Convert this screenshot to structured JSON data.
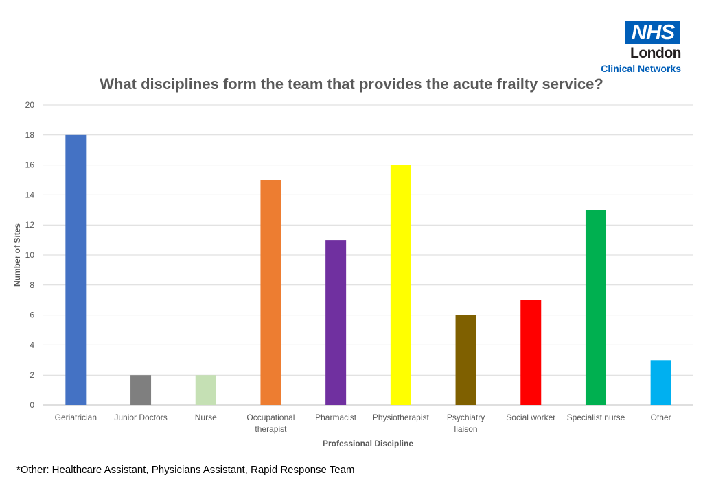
{
  "logo": {
    "brand": "NHS",
    "region": "London",
    "network": "Clinical Networks"
  },
  "colors": {
    "nhs_blue": "#005eb8",
    "title": "#595959",
    "gridline": "#d9d9d9",
    "axis_text": "#595959"
  },
  "chart_data": {
    "type": "bar",
    "title": "What disciplines form the team that provides the acute frailty service?",
    "xlabel": "Professional Discipline",
    "ylabel": "Number of Sites",
    "ylim": [
      0,
      20
    ],
    "yticks": [
      0,
      2,
      4,
      6,
      8,
      10,
      12,
      14,
      16,
      18,
      20
    ],
    "grid": true,
    "categories": [
      [
        "Geriatrician"
      ],
      [
        "Junior Doctors"
      ],
      [
        "Nurse"
      ],
      [
        "Occupational",
        "therapist"
      ],
      [
        "Pharmacist"
      ],
      [
        "Physiotherapist"
      ],
      [
        "Psychiatry",
        "liaison"
      ],
      [
        "Social worker"
      ],
      [
        "Specialist nurse"
      ],
      [
        "Other"
      ]
    ],
    "values": [
      18,
      2,
      2,
      15,
      11,
      16,
      6,
      7,
      13,
      3
    ],
    "bar_colors": [
      "#4472c4",
      "#7f7f7f",
      "#c5e0b4",
      "#ed7d31",
      "#7030a0",
      "#ffff00",
      "#7f6000",
      "#ff0000",
      "#00b050",
      "#00b0f0"
    ]
  },
  "footnote": "*Other: Healthcare Assistant, Physicians Assistant, Rapid Response Team"
}
